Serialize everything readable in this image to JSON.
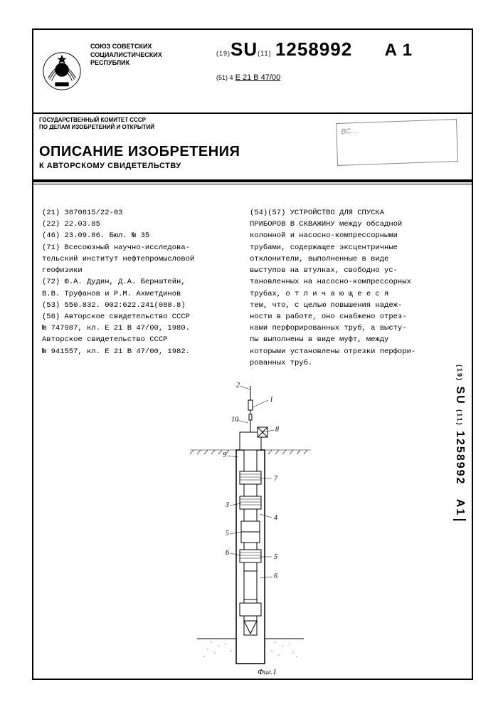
{
  "union": {
    "line1": "СОЮЗ СОВЕТСКИХ",
    "line2": "СОЦИАЛИСТИЧЕСКИХ",
    "line3": "РЕСПУБЛИК"
  },
  "patent": {
    "prefix19": "(19)",
    "su": "SU",
    "prefix11": "(11)",
    "number": "1258992",
    "kind": "A 1",
    "cls_prefix": "(51) 4",
    "cls": "E 21 B 47/00"
  },
  "committee": {
    "line1": "ГОСУДАРСТВЕННЫЙ КОМИТЕТ СССР",
    "line2": "ПО ДЕЛАМ ИЗОБРЕТЕНИЙ И ОТКРЫТИЙ"
  },
  "title": {
    "main": "ОПИСАНИЕ ИЗОБРЕТЕНИЯ",
    "sub": "К АВТОРСКОМУ СВИДЕТЕЛЬСТВУ"
  },
  "stamp": {
    "text": "ВС…"
  },
  "left_col": [
    "(21) 3870815/22-03",
    "(22) 22.03.85",
    "(46) 23.09.86. Бюл. № 35",
    "(71) Всесоюзный научно-исследова-",
    "тельский институт нефтепромысловой",
    "геофизики",
    "(72) Ю.А. Дудин, Д.А. Бернштейн,",
    "В.В. Труфанов и Р.М. Ахметдинов",
    "(53) 550.832. 002:622.241(088.8)",
    "(56) Авторское свидетельство СССР",
    "№ 747987, кл. E 21 B 47/00, 1980.",
    "   Авторское свидетельство СССР",
    "№ 941557, кл. E 21 B 47/00, 1982."
  ],
  "right_col": [
    "(54)(57) УСТРОЙСТВО ДЛЯ СПУСКА",
    "ПРИБОРОВ В СКВАЖИНУ между обсадной",
    "колонной и насосно-компрессорными",
    "трубами, содержащее эксцентричные",
    "отклонители, выполненные в виде",
    "выступов на втулках, свободно ус-",
    "тановленных на насосно-компрессорных",
    "трубах, о т л и ч а ю щ е е с я",
    "тем, что, с целью повышения надеж-",
    "ности в работе, оно снабжено отрез-",
    "ками перфорированных труб, а высту-",
    "пы выполнены в виде муфт, между",
    "которыми установлены отрезки перфори-",
    "рованных труб."
  ],
  "figure": {
    "label": "Фиг.1",
    "refs": [
      "1",
      "2",
      "3",
      "4",
      "5",
      "6",
      "7",
      "8",
      "9",
      "10"
    ]
  },
  "side_code": {
    "prefix19": "(19)",
    "su": "SU",
    "prefix11": "(11)",
    "number": "1258992",
    "kind": "A1"
  }
}
